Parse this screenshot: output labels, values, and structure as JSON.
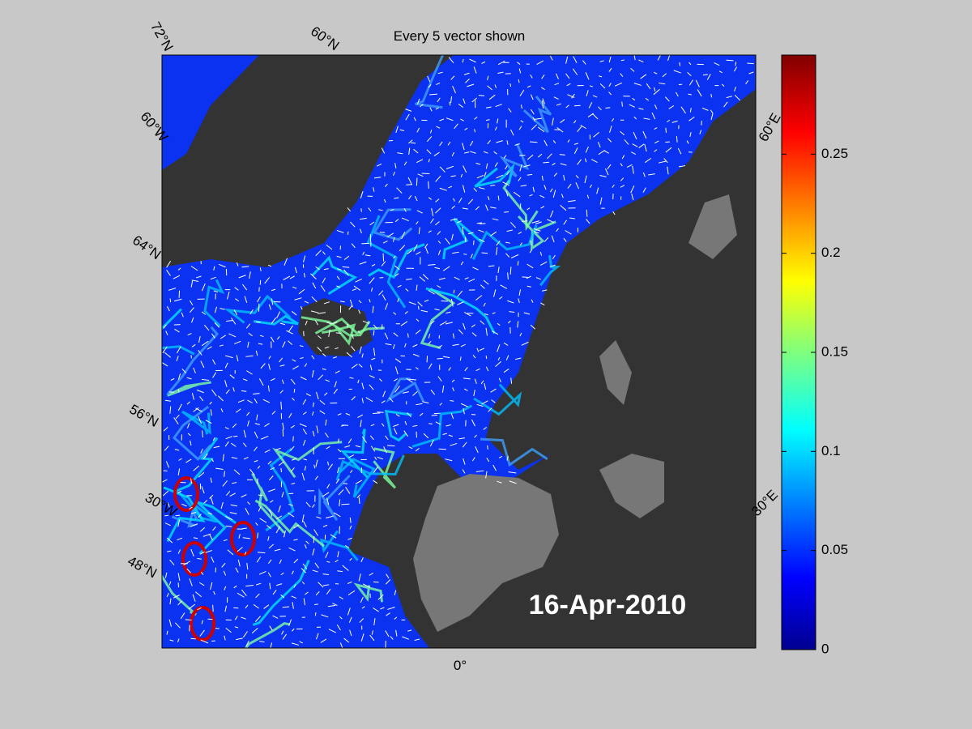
{
  "title": "Every 5 vector shown",
  "date_label": "16-Apr-2010",
  "graticule_labels": [
    "72°N",
    "60°N",
    "60°W",
    "64°N",
    "56°N",
    "30°W",
    "48°N",
    "0°",
    "60°E",
    "30°E"
  ],
  "colorbar": {
    "lim": [
      0,
      0.3
    ],
    "ticks": [
      0,
      0.05,
      0.1,
      0.15,
      0.2,
      0.25
    ]
  }
}
